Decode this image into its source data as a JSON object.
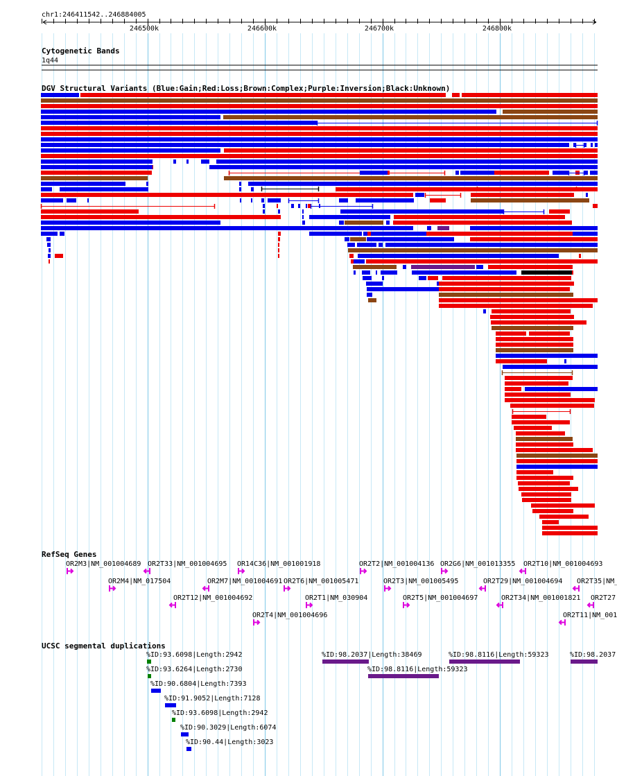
{
  "ruler": {
    "range_label": "chr1:246411542..246884005",
    "start": 246411542,
    "end": 246884005,
    "tick_labels": [
      "246500k",
      "246600k",
      "246700k",
      "246800k"
    ],
    "tick_values": [
      246500000,
      246600000,
      246700000,
      246800000
    ]
  },
  "cytoband": {
    "title": "Cytogenetic Bands",
    "band_label": "1q44"
  },
  "dgv": {
    "title": "DGV Structural Variants (Blue:Gain;Red:Loss;Brown:Complex;Purple:Inversion;Black:Unknown)",
    "colors": {
      "gain": "#0000ee",
      "loss": "#ee0000",
      "complex": "#8b4513",
      "inversion": "#6a1a8a",
      "unknown": "#000000"
    }
  },
  "refseq": {
    "title": "RefSeq Genes",
    "arrow_color": "#dd00dd",
    "genes": [
      {
        "label": "OR2M3|NM_001004689",
        "dir": "+"
      },
      {
        "label": "OR2T33|NM_001004695",
        "dir": "-"
      },
      {
        "label": "OR14C36|NM_001001918",
        "dir": "+"
      },
      {
        "label": "OR2T2|NM_001004136",
        "dir": "+"
      },
      {
        "label": "OR2G6|NM_001013355",
        "dir": "+"
      },
      {
        "label": "OR2T10|NM_001004693",
        "dir": "-"
      },
      {
        "label": "OR2M4|NM_017504",
        "dir": "+"
      },
      {
        "label": "OR2M7|NM_001004691",
        "dir": "-"
      },
      {
        "label": "OR2T6|NM_001005471",
        "dir": "+"
      },
      {
        "label": "OR2T3|NM_001005495",
        "dir": "+"
      },
      {
        "label": "OR2T29|NM_001004694",
        "dir": "-"
      },
      {
        "label": "OR2T35|NM_",
        "dir": "-"
      },
      {
        "label": "OR2T12|NM_001004692",
        "dir": "-"
      },
      {
        "label": "OR2T1|NM_030904",
        "dir": "+"
      },
      {
        "label": "OR2T5|NM_001004697",
        "dir": "+"
      },
      {
        "label": "OR2T34|NM_001001821",
        "dir": "-"
      },
      {
        "label": "OR2T27",
        "dir": "-"
      },
      {
        "label": "OR2T4|NM_001004696",
        "dir": "+"
      },
      {
        "label": "OR2T11|NM_001",
        "dir": "-"
      }
    ]
  },
  "segdups": {
    "title": "UCSC segmental duplications",
    "items": [
      {
        "label": "%ID:93.6098|Length:2942",
        "color": "#008000"
      },
      {
        "label": "%ID:93.6264|Length:2730",
        "color": "#008000"
      },
      {
        "label": "%ID:90.6804|Length:7393",
        "color": "#0000ee"
      },
      {
        "label": "%ID:91.9052|Length:7128",
        "color": "#0000ee"
      },
      {
        "label": "%ID:93.6098|Length:2942",
        "color": "#008000"
      },
      {
        "label": "%ID:90.3029|Length:6074",
        "color": "#0000ee"
      },
      {
        "label": "%ID:90.44|Length:3023",
        "color": "#0000ee"
      },
      {
        "label": "%ID:98.2037|Length:38469",
        "color": "#6a1a8a"
      },
      {
        "label": "%ID:98.8116|Length:59323",
        "color": "#6a1a8a"
      },
      {
        "label": "%ID:98.8116|Length:59323",
        "color": "#6a1a8a"
      },
      {
        "label": "%ID:98.2037",
        "color": "#6a1a8a"
      }
    ]
  }
}
